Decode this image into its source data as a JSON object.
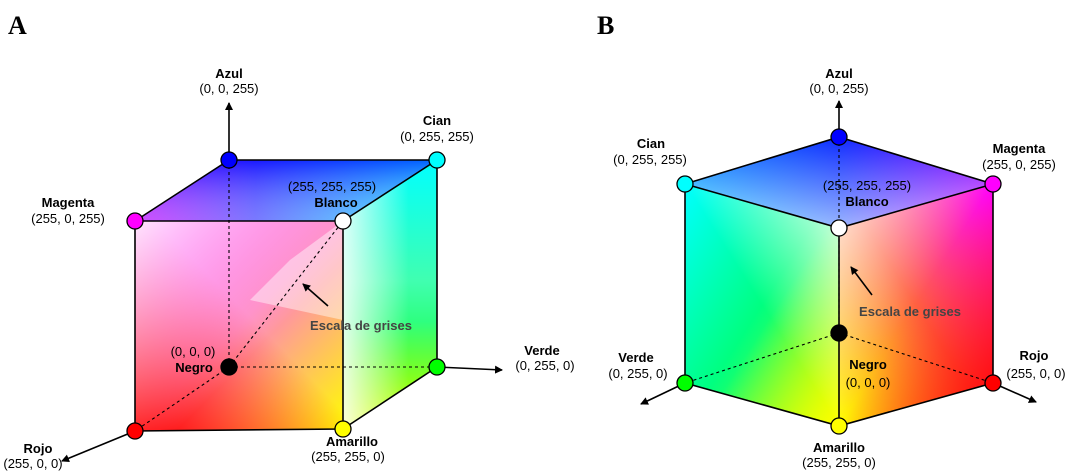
{
  "panels": [
    {
      "letter": "A",
      "labels": {
        "azul_name": "Azul",
        "azul_val": "(0, 0, 255)",
        "cian_name": "Cian",
        "cian_val": "(0, 255, 255)",
        "magenta_name": "Magenta",
        "magenta_val": "(255, 0, 255)",
        "blanco_val": "(255, 255, 255)",
        "blanco_name": "Blanco",
        "gray_label": "Escala de grises",
        "negro_val": "(0, 0, 0)",
        "negro_name": "Negro",
        "verde_name": "Verde",
        "verde_val": "(0, 255, 0)",
        "rojo_name": "Rojo",
        "rojo_val": "(255, 0, 0)",
        "amarillo_name": "Amarillo",
        "amarillo_val": "(255, 255, 0)"
      }
    },
    {
      "letter": "B",
      "labels": {
        "azul_name": "Azul",
        "azul_val": "(0, 0, 255)",
        "cian_name": "Cian",
        "cian_val": "(0, 255, 255)",
        "magenta_name": "Magenta",
        "magenta_val": "(255, 0, 255)",
        "blanco_val": "(255, 255, 255)",
        "blanco_name": "Blanco",
        "gray_label": "Escala de grises",
        "negro_name": "Negro",
        "negro_val": "(0, 0, 0)",
        "verde_name": "Verde",
        "verde_val": "(0, 255, 0)",
        "rojo_name": "Rojo",
        "rojo_val": "(255, 0, 0)",
        "amarillo_name": "Amarillo",
        "amarillo_val": "(255, 255, 0)"
      }
    }
  ],
  "colors": {
    "black": "#000000",
    "white": "#ffffff",
    "red": "#ff0000",
    "green": "#00ff00",
    "blue": "#0000ff",
    "cyan": "#00ffff",
    "magenta": "#ff00ff",
    "yellow": "#ffff00"
  }
}
